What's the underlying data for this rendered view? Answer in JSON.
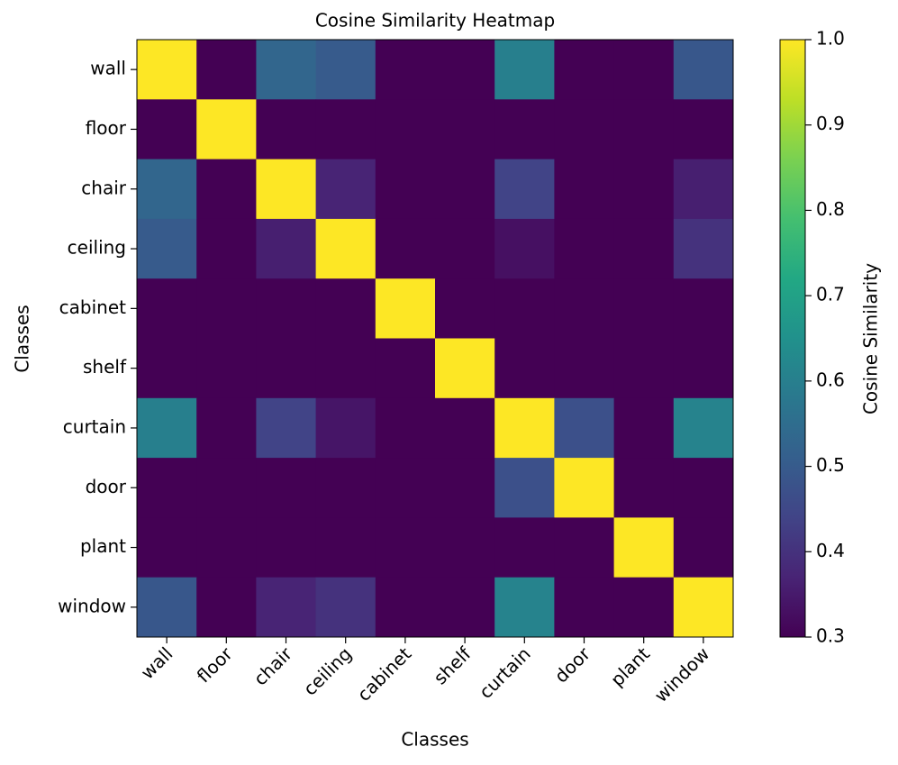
{
  "chart_data": {
    "type": "heatmap",
    "title": "Cosine Similarity Heatmap",
    "x_label": "Classes",
    "y_label": "Classes",
    "colorbar_label": "Cosine Similarity",
    "colormap": "viridis",
    "categories": [
      "wall",
      "floor",
      "chair",
      "ceiling",
      "cabinet",
      "shelf",
      "curtain",
      "door",
      "plant",
      "window"
    ],
    "values": [
      [
        1.0,
        0.3,
        0.53,
        0.5,
        0.3,
        0.3,
        0.6,
        0.3,
        0.3,
        0.49
      ],
      [
        0.3,
        1.0,
        0.3,
        0.3,
        0.3,
        0.3,
        0.3,
        0.3,
        0.3,
        0.3
      ],
      [
        0.53,
        0.3,
        1.0,
        0.37,
        0.3,
        0.3,
        0.44,
        0.3,
        0.3,
        0.36
      ],
      [
        0.5,
        0.3,
        0.36,
        1.0,
        0.3,
        0.3,
        0.33,
        0.3,
        0.3,
        0.4
      ],
      [
        0.3,
        0.3,
        0.3,
        0.3,
        1.0,
        0.3,
        0.3,
        0.3,
        0.3,
        0.3
      ],
      [
        0.3,
        0.3,
        0.3,
        0.3,
        0.3,
        1.0,
        0.3,
        0.3,
        0.3,
        0.3
      ],
      [
        0.6,
        0.3,
        0.44,
        0.34,
        0.3,
        0.3,
        1.0,
        0.47,
        0.3,
        0.61
      ],
      [
        0.3,
        0.3,
        0.3,
        0.3,
        0.3,
        0.3,
        0.47,
        1.0,
        0.3,
        0.3
      ],
      [
        0.3,
        0.3,
        0.3,
        0.3,
        0.3,
        0.3,
        0.3,
        0.3,
        1.0,
        0.3
      ],
      [
        0.49,
        0.3,
        0.37,
        0.4,
        0.3,
        0.3,
        0.61,
        0.3,
        0.3,
        1.0
      ]
    ],
    "clim": [
      0.3,
      1.0
    ],
    "cticks": [
      0.3,
      0.4,
      0.5,
      0.6,
      0.7,
      0.8,
      0.9,
      {
        "value": 1,
        "label": "1.0"
      }
    ]
  }
}
